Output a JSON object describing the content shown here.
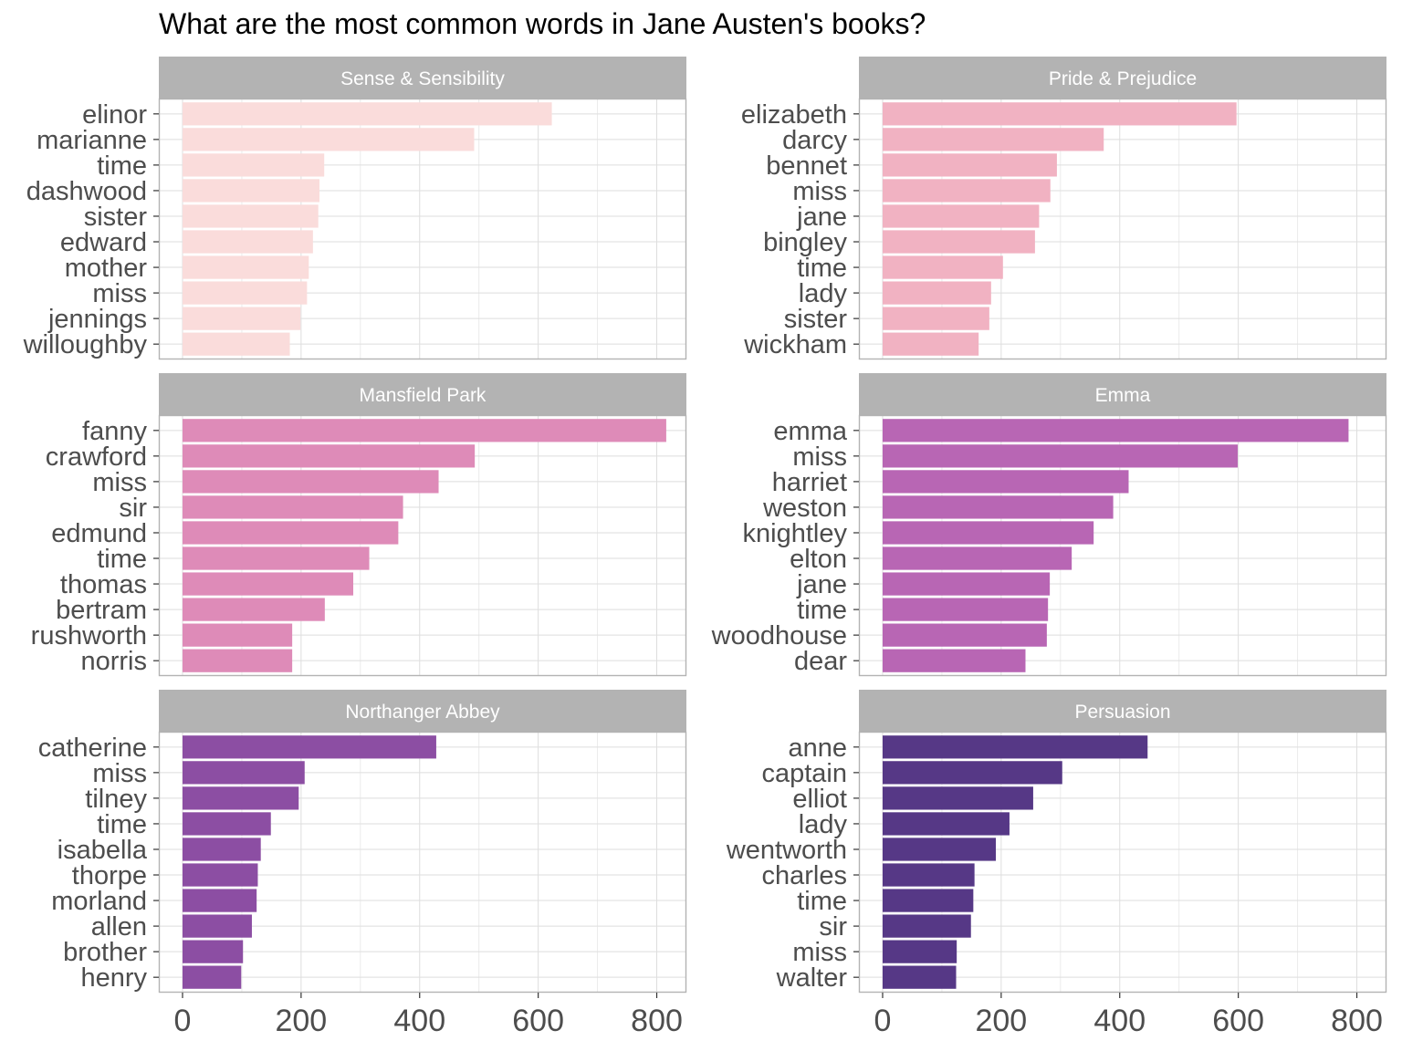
{
  "chart_data": {
    "type": "bar",
    "orientation": "horizontal",
    "title": "What are the most common words in Jane Austen's books?",
    "xlabel": "",
    "ylabel": "",
    "xlim": [
      -40,
      850
    ],
    "x_ticks": [
      0,
      200,
      400,
      600,
      800
    ],
    "grid": true,
    "legend": "none",
    "facets": [
      {
        "name": "Sense & Sensibility",
        "color": "#fadcdb",
        "categories": [
          "elinor",
          "marianne",
          "time",
          "dashwood",
          "sister",
          "edward",
          "mother",
          "miss",
          "jennings",
          "willoughby"
        ],
        "values": [
          623,
          492,
          239,
          231,
          229,
          220,
          213,
          210,
          199,
          181
        ]
      },
      {
        "name": "Pride & Prejudice",
        "color": "#f1b2c2",
        "categories": [
          "elizabeth",
          "darcy",
          "bennet",
          "miss",
          "jane",
          "bingley",
          "time",
          "lady",
          "sister",
          "wickham"
        ],
        "values": [
          597,
          373,
          294,
          283,
          264,
          257,
          203,
          183,
          180,
          162
        ]
      },
      {
        "name": "Mansfield Park",
        "color": "#de8bb8",
        "categories": [
          "fanny",
          "crawford",
          "miss",
          "sir",
          "edmund",
          "time",
          "thomas",
          "bertram",
          "rushworth",
          "norris"
        ],
        "values": [
          816,
          493,
          432,
          372,
          364,
          315,
          288,
          240,
          185,
          185
        ]
      },
      {
        "name": "Emma",
        "color": "#b866b4",
        "categories": [
          "emma",
          "miss",
          "harriet",
          "weston",
          "knightley",
          "elton",
          "jane",
          "time",
          "woodhouse",
          "dear"
        ],
        "values": [
          786,
          599,
          415,
          389,
          356,
          319,
          282,
          279,
          277,
          241
        ]
      },
      {
        "name": "Northanger Abbey",
        "color": "#8c4ea3",
        "categories": [
          "catherine",
          "miss",
          "tilney",
          "time",
          "isabella",
          "thorpe",
          "morland",
          "allen",
          "brother",
          "henry"
        ],
        "values": [
          428,
          206,
          196,
          149,
          132,
          127,
          125,
          117,
          102,
          99
        ]
      },
      {
        "name": "Persuasion",
        "color": "#563886",
        "categories": [
          "anne",
          "captain",
          "elliot",
          "lady",
          "wentworth",
          "charles",
          "time",
          "sir",
          "miss",
          "walter"
        ],
        "values": [
          447,
          303,
          254,
          214,
          191,
          155,
          153,
          149,
          125,
          124
        ]
      }
    ]
  }
}
